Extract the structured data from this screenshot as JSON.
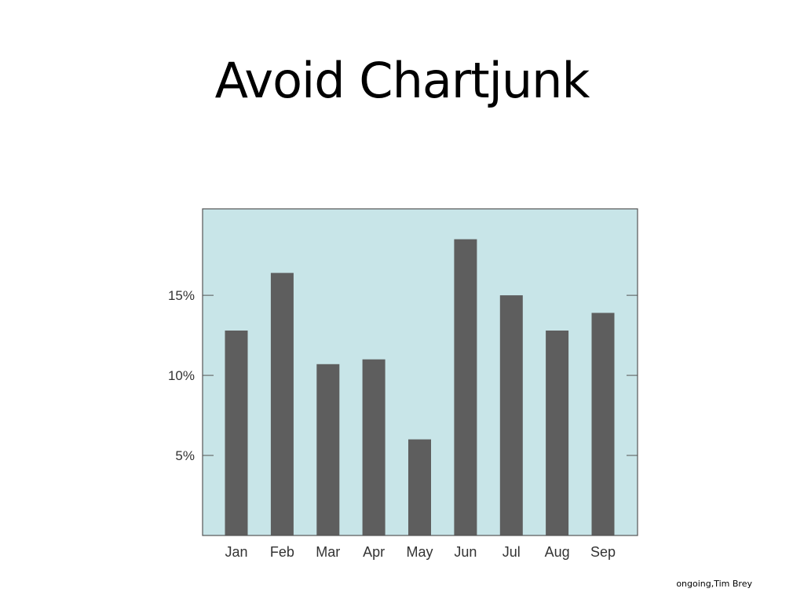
{
  "slide": {
    "title": "Avoid Chartjunk",
    "credit": "ongoing,Tim Brey"
  },
  "chart_data": {
    "type": "bar",
    "categories": [
      "Jan",
      "Feb",
      "Mar",
      "Apr",
      "May",
      "Jun",
      "Jul",
      "Aug",
      "Sep"
    ],
    "values": [
      12.8,
      16.4,
      10.7,
      11.0,
      6.0,
      18.5,
      15.0,
      12.8,
      13.9
    ],
    "yticks": [
      5,
      10,
      15
    ],
    "ytick_labels": [
      "5%",
      "10%",
      "15%"
    ],
    "ylim": [
      0,
      20.4
    ],
    "title": "",
    "xlabel": "",
    "ylabel": "",
    "grid": false,
    "colors": {
      "plot_background": "#c8e5e8",
      "bar": "#5e5e5e",
      "axis": "#555555",
      "figure_background": "#ffffff"
    }
  }
}
